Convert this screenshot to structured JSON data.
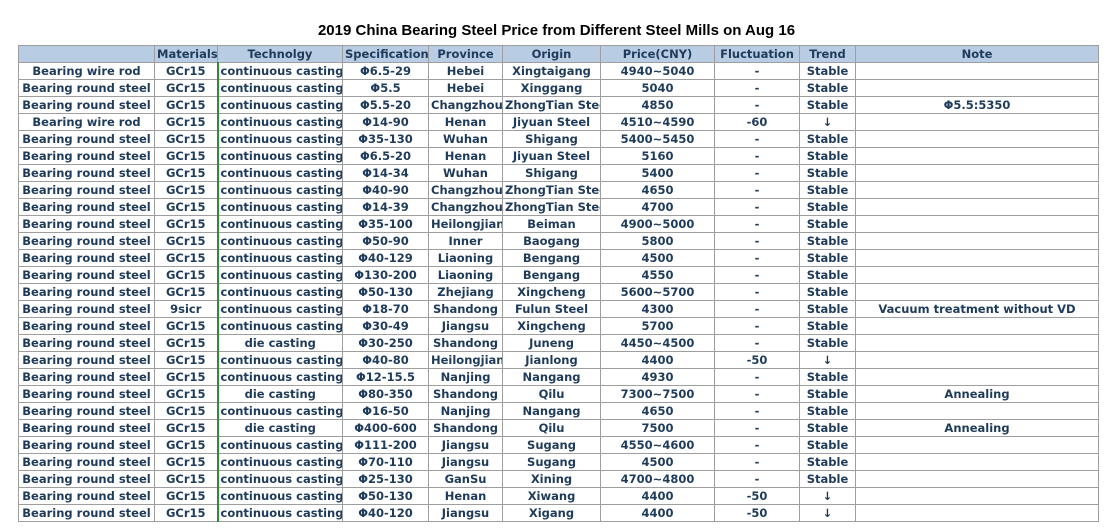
{
  "title": "2019 China Bearing Steel Price from Different Steel Mills on Aug 16",
  "columns": [
    "",
    "Materials",
    "Technolgy",
    "Specification",
    "Province",
    "Origin",
    "Price(CNY)",
    "Fluctuation",
    "Trend",
    "Note"
  ],
  "rows": [
    [
      "Bearing wire rod",
      "GCr15",
      "continuous casting",
      "Φ6.5-29",
      "Hebei",
      "Xingtaigang",
      "4940~5040",
      "-",
      "Stable",
      ""
    ],
    [
      "Bearing round steel",
      "GCr15",
      "continuous casting",
      "Φ5.5",
      "Hebei",
      "Xinggang",
      "5040",
      "-",
      "Stable",
      ""
    ],
    [
      "Bearing round steel",
      "GCr15",
      "continuous casting",
      "Φ5.5-20",
      "Changzhou",
      "ZhongTian Steel",
      "4850",
      "-",
      "Stable",
      "Φ5.5:5350"
    ],
    [
      "Bearing wire rod",
      "GCr15",
      "continuous casting",
      "Φ14-90",
      "Henan",
      "Jiyuan Steel",
      "4510~4590",
      "-60",
      "↓",
      ""
    ],
    [
      "Bearing round steel",
      "GCr15",
      "continuous casting",
      "Φ35-130",
      "Wuhan",
      "Shigang",
      "5400~5450",
      "-",
      "Stable",
      ""
    ],
    [
      "Bearing round steel",
      "GCr15",
      "continuous casting",
      "Φ6.5-20",
      "Henan",
      "Jiyuan Steel",
      "5160",
      "-",
      "Stable",
      ""
    ],
    [
      "Bearing round steel",
      "GCr15",
      "continuous casting",
      "Φ14-34",
      "Wuhan",
      "Shigang",
      "5400",
      "-",
      "Stable",
      ""
    ],
    [
      "Bearing round steel",
      "GCr15",
      "continuous casting",
      "Φ40-90",
      "Changzhou",
      "ZhongTian Steel",
      "4650",
      "-",
      "Stable",
      ""
    ],
    [
      "Bearing round steel",
      "GCr15",
      "continuous casting",
      "Φ14-39",
      "Changzhou",
      "ZhongTian Steel",
      "4700",
      "-",
      "Stable",
      ""
    ],
    [
      "Bearing round steel",
      "GCr15",
      "continuous casting",
      "Φ35-100",
      "Heilongjian",
      "Beiman",
      "4900~5000",
      "-",
      "Stable",
      ""
    ],
    [
      "Bearing round steel",
      "GCr15",
      "continuous casting",
      "Φ50-90",
      "Inner",
      "Baogang",
      "5800",
      "-",
      "Stable",
      ""
    ],
    [
      "Bearing round steel",
      "GCr15",
      "continuous casting",
      "Φ40-129",
      "Liaoning",
      "Bengang",
      "4500",
      "-",
      "Stable",
      ""
    ],
    [
      "Bearing round steel",
      "GCr15",
      "continuous casting",
      "Φ130-200",
      "Liaoning",
      "Bengang",
      "4550",
      "-",
      "Stable",
      ""
    ],
    [
      "Bearing round steel",
      "GCr15",
      "continuous casting",
      "Φ50-130",
      "Zhejiang",
      "Xingcheng",
      "5600~5700",
      "-",
      "Stable",
      ""
    ],
    [
      "Bearing round steel",
      "9sicr",
      "continuous casting",
      "Φ18-70",
      "Shandong",
      "Fulun Steel",
      "4300",
      "-",
      "Stable",
      "Vacuum treatment without VD"
    ],
    [
      "Bearing round steel",
      "GCr15",
      "continuous casting",
      "Φ30-49",
      "Jiangsu",
      "Xingcheng",
      "5700",
      "-",
      "Stable",
      ""
    ],
    [
      "Bearing round steel",
      "GCr15",
      "die casting",
      "Φ30-250",
      "Shandong",
      "Juneng",
      "4450~4500",
      "-",
      "Stable",
      ""
    ],
    [
      "Bearing round steel",
      "GCr15",
      "continuous casting",
      "Φ40-80",
      "Heilongjian",
      "Jianlong",
      "4400",
      "-50",
      "↓",
      ""
    ],
    [
      "Bearing round steel",
      "GCr15",
      "continuous casting",
      "Φ12-15.5",
      "Nanjing",
      "Nangang",
      "4930",
      "-",
      "Stable",
      ""
    ],
    [
      "Bearing round steel",
      "GCr15",
      "die casting",
      "Φ80-350",
      "Shandong",
      "Qilu",
      "7300~7500",
      "-",
      "Stable",
      "Annealing"
    ],
    [
      "Bearing round steel",
      "GCr15",
      "continuous casting",
      "Φ16-50",
      "Nanjing",
      "Nangang",
      "4650",
      "-",
      "Stable",
      ""
    ],
    [
      "Bearing round steel",
      "GCr15",
      "die casting",
      "Φ400-600",
      "Shandong",
      "Qilu",
      "7500",
      "-",
      "Stable",
      "Annealing"
    ],
    [
      "Bearing round steel",
      "GCr15",
      "continuous casting",
      "Φ111-200",
      "Jiangsu",
      "Sugang",
      "4550~4600",
      "-",
      "Stable",
      ""
    ],
    [
      "Bearing round steel",
      "GCr15",
      "continuous casting",
      "Φ70-110",
      "Jiangsu",
      "Sugang",
      "4500",
      "-",
      "Stable",
      ""
    ],
    [
      "Bearing round steel",
      "GCr15",
      "continuous casting",
      "Φ25-130",
      "GanSu",
      "Xining",
      "4700~4800",
      "-",
      "Stable",
      ""
    ],
    [
      "Bearing round steel",
      "GCr15",
      "continuous casting",
      "Φ50-130",
      "Henan",
      "Xiwang",
      "4400",
      "-50",
      "↓",
      ""
    ],
    [
      "Bearing round steel",
      "GCr15",
      "continuous casting",
      "Φ40-120",
      "Jiangsu",
      "Xigang",
      "4400",
      "-50",
      "↓",
      ""
    ]
  ],
  "colors": {
    "header_bg": "#b8cce4",
    "text": "#1f3b5a",
    "border": "#9e9e9e",
    "down_arrow": "#2e8b3a"
  }
}
